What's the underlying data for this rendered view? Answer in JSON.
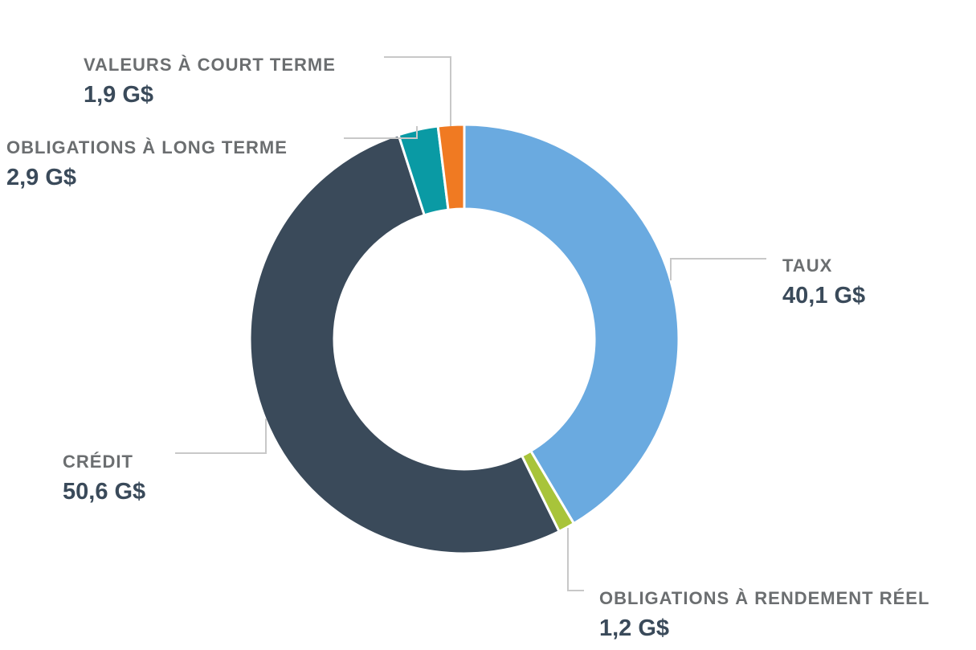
{
  "chart_data": {
    "type": "pie",
    "unit": "G$",
    "slices": [
      {
        "label": "TAUX",
        "value": 40.1,
        "display": "40,1 G$",
        "color": "#6aaae0"
      },
      {
        "label": "OBLIGATIONS À RENDEMENT RÉEL",
        "value": 1.2,
        "display": "1,2 G$",
        "color": "#a8c43a"
      },
      {
        "label": "CRÉDIT",
        "value": 50.6,
        "display": "50,6 G$",
        "color": "#3a4a5a"
      },
      {
        "label": "OBLIGATIONS À LONG TERME",
        "value": 2.9,
        "display": "2,9 G$",
        "color": "#0a9aa4"
      },
      {
        "label": "VALEURS À COURT TERME",
        "value": 1.9,
        "display": "1,9 G$",
        "color": "#f07a22"
      }
    ],
    "legend": "callouts",
    "start": "top, clockwise"
  }
}
